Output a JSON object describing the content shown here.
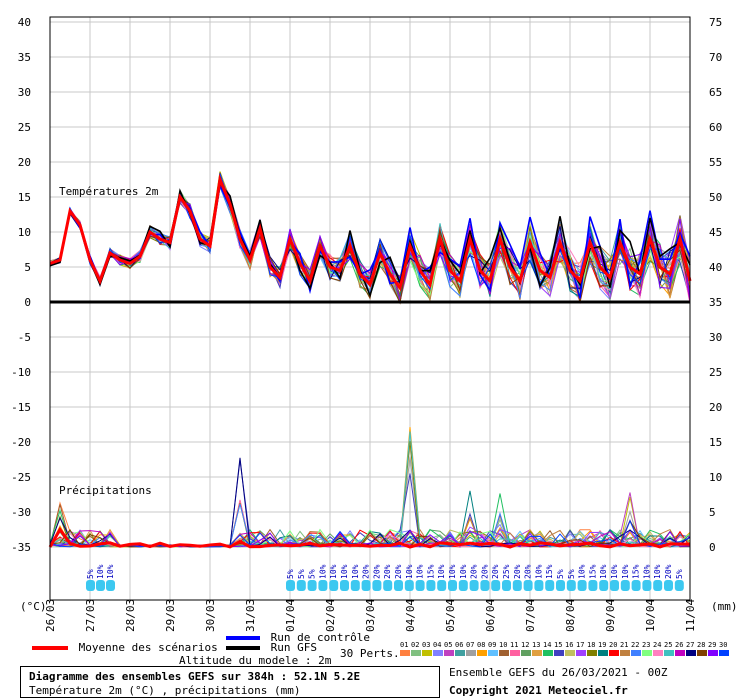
{
  "chart_data": {
    "type": "line",
    "title": "Diagramme des ensembles GEFS sur 384h : 52.1N 5.2E",
    "subtitle": "Température 2m (°C) , précipitations (mm)",
    "panels": {
      "temperature_label": "Températures 2m",
      "precip_label": "Précipitations"
    },
    "left_axis": {
      "label": "(°C)",
      "ticks": [
        "40",
        "35",
        "30",
        "25",
        "20",
        "15",
        "10",
        "5",
        "0",
        "-5",
        "-10",
        "-15",
        "-20",
        "-25",
        "-30",
        "-35"
      ],
      "range": [
        -35,
        40
      ]
    },
    "right_axis": {
      "label": "(mm)",
      "ticks": [
        "75",
        "70",
        "65",
        "60",
        "55",
        "50",
        "45",
        "40",
        "35",
        "30",
        "25",
        "20",
        "15",
        "10",
        "5",
        "0"
      ]
    },
    "x_ticks": [
      "26/03",
      "27/03",
      "28/03",
      "29/03",
      "30/03",
      "31/03",
      "01/04",
      "02/04",
      "03/04",
      "04/04",
      "05/04",
      "06/04",
      "07/04",
      "08/04",
      "09/04",
      "10/04",
      "11/04"
    ],
    "temperature_mean": {
      "name": "Moyenne des scénarios",
      "t_hours": [
        0,
        6,
        12,
        18,
        24,
        30,
        36,
        42,
        48,
        54,
        60,
        66,
        72,
        78,
        84,
        90,
        96,
        102,
        108,
        114,
        120,
        126,
        132,
        138,
        144,
        150,
        156,
        162,
        168,
        174,
        180,
        186,
        192,
        198,
        204,
        210,
        216,
        222,
        228,
        234,
        240,
        246,
        252,
        258,
        264,
        270,
        276,
        282,
        288,
        294,
        300,
        306,
        312,
        318,
        324,
        330,
        336,
        342,
        348,
        354,
        360,
        366,
        372,
        378,
        384
      ],
      "values": [
        5.5,
        6,
        13,
        11,
        6,
        3,
        7,
        6,
        5.5,
        6.5,
        10,
        9,
        8.5,
        15,
        13,
        9,
        8,
        17.5,
        14,
        9,
        6,
        10.5,
        5,
        3.5,
        9,
        5.5,
        3,
        8,
        5,
        4.5,
        8,
        4,
        2.5,
        7,
        4,
        2,
        8,
        4.5,
        2.5,
        9,
        4.5,
        3,
        9,
        4.5,
        3,
        9,
        5,
        3,
        8.5,
        4.5,
        3.5,
        8.5,
        4.5,
        3,
        8.5,
        5,
        3.5,
        8.5,
        5,
        4,
        9,
        5,
        4,
        9,
        3
      ]
    },
    "precip_peaks": [
      {
        "t_hours": 6,
        "max_mm": 7
      },
      {
        "t_hours": 114,
        "max_mm": 13
      },
      {
        "t_hours": 216,
        "max_mm": 18
      },
      {
        "t_hours": 252,
        "max_mm": 9
      },
      {
        "t_hours": 270,
        "max_mm": 8
      },
      {
        "t_hours": 348,
        "max_mm": 8
      }
    ],
    "precip_probabilities": {
      "group1": [
        "5%",
        "10%",
        "10%"
      ],
      "group2": [
        "5%",
        "5%",
        "5%",
        "10%",
        "10%",
        "10%",
        "10%",
        "20%",
        "20%",
        "20%",
        "20%",
        "10%",
        "10%",
        "15%",
        "10%",
        "10%",
        "10%",
        "20%",
        "20%",
        "20%",
        "25%",
        "20%",
        "20%",
        "10%",
        "15%",
        "5%",
        "5%",
        "10%",
        "15%",
        "10%",
        "10%",
        "10%",
        "15%",
        "10%",
        "10%",
        "20%",
        "5%"
      ]
    },
    "legend": {
      "mean": "Moyenne des scénarios",
      "control": "Run de contrôle",
      "gfs": "Run GFS",
      "perts": "30 Perts.",
      "altitude": "Altitude du modele : 2m",
      "pert_numbers": [
        "01",
        "02",
        "03",
        "04",
        "05",
        "06",
        "07",
        "08",
        "09",
        "10",
        "11",
        "12",
        "13",
        "14",
        "15",
        "16",
        "17",
        "18",
        "19",
        "20",
        "21",
        "22",
        "23",
        "24",
        "25",
        "26",
        "27",
        "28",
        "29",
        "30"
      ],
      "pert_colors": [
        "#ff8040",
        "#80c080",
        "#c0c000",
        "#8080ff",
        "#c040c0",
        "#40a0a0",
        "#a0a0a0",
        "#ffa000",
        "#60c0ff",
        "#a06030",
        "#ff60a0",
        "#60a060",
        "#e0a040",
        "#20c060",
        "#4040c0",
        "#c0c060",
        "#a040ff",
        "#808000",
        "#008080",
        "#ff0000",
        "#c08040",
        "#4080ff",
        "#80ff80",
        "#ff80c0",
        "#40c0c0",
        "#c000c0",
        "#000080",
        "#804000",
        "#8000ff",
        "#0040ff"
      ]
    },
    "colors": {
      "mean": "#ff0000",
      "control": "#0000ff",
      "gfs": "#000000",
      "grid": "#c8c8c8",
      "precip_icon": "#3cc8f0"
    },
    "footer": {
      "ensemble": "Ensemble GEFS du 26/03/2021 - 00Z",
      "copyright": "Copyright 2021 Meteociel.fr"
    }
  }
}
